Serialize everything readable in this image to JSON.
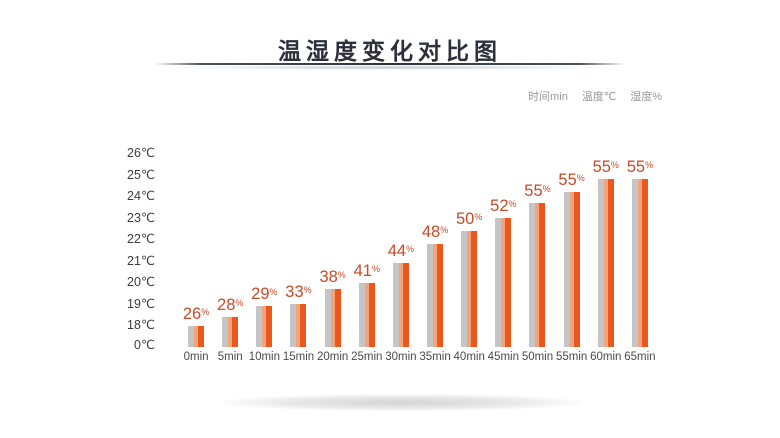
{
  "header": {
    "title": "温湿度变化对比图"
  },
  "legend": {
    "items": [
      "时间min",
      "温度℃",
      "湿度%"
    ]
  },
  "chart_data": {
    "type": "bar",
    "title": "温湿度变化对比图",
    "xlabel": "时间min",
    "ylabel": "温度℃",
    "categories": [
      "0min",
      "5min",
      "10min",
      "15min",
      "20min",
      "25min",
      "30min",
      "35min",
      "40min",
      "45min",
      "50min",
      "55min",
      "60min",
      "65min"
    ],
    "series": [
      {
        "name": "温度℃",
        "unit": "℃",
        "values": [
          18.0,
          18.4,
          18.9,
          19.0,
          19.7,
          20.0,
          20.9,
          21.8,
          22.4,
          23.0,
          23.7,
          24.2,
          24.8,
          24.8
        ]
      },
      {
        "name": "湿度%",
        "unit": "%",
        "values": [
          26,
          28,
          29,
          33,
          38,
          41,
          44,
          48,
          50,
          52,
          55,
          55,
          55,
          55
        ]
      }
    ],
    "bar_value_labels": [
      "26%",
      "28%",
      "29%",
      "33%",
      "38%",
      "41%",
      "44%",
      "48%",
      "50%",
      "52%",
      "55%",
      "55%",
      "55%",
      "55%"
    ],
    "y_tick_labels": [
      "26℃",
      "25℃",
      "24℃",
      "23℃",
      "22℃",
      "21℃",
      "20℃",
      "19℃",
      "18℃",
      "0℃"
    ],
    "y_axis_note": "broken scale: 0℃ tick shown just below 18℃",
    "ylim": [
      18,
      26
    ],
    "grid": false,
    "legend_position": "top-right"
  },
  "colors": {
    "title_text": "#2b303a",
    "value_label": "#c64b28",
    "bar_gray": "#c5c5c8",
    "bar_highlight": "#f2a47c",
    "bar_orange": "#eb571c",
    "axis_text": "#4a4a4a",
    "legend_text": "#999999"
  }
}
